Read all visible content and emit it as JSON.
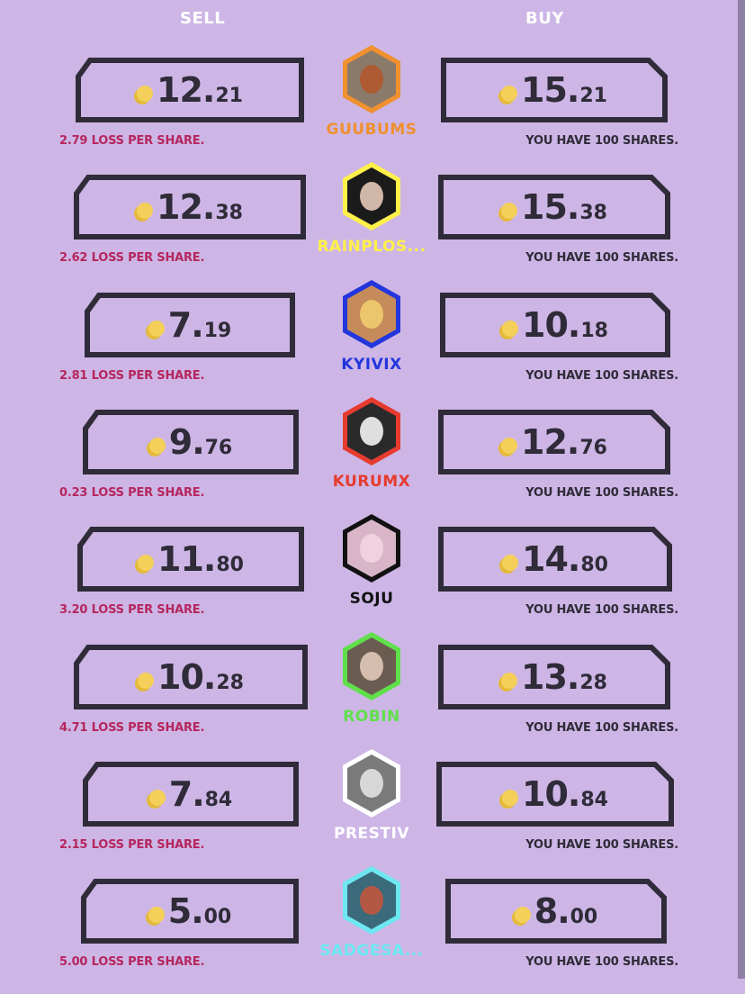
{
  "headers": {
    "sell": "SELL",
    "buy": "BUY"
  },
  "icon_names": {
    "coin": "coin-icon",
    "avatar": "avatar-icon"
  },
  "traders": [
    {
      "name": "GUUBUMS",
      "color": "#f0902e",
      "sell_int": "12",
      "sell_dec": "21",
      "buy_int": "15",
      "buy_dec": "21",
      "loss": "2.79 LOSS PER SHARE.",
      "shares": "YOU HAVE 100 SHARES."
    },
    {
      "name": "RAINPLOS...",
      "color": "#fff04a",
      "sell_int": "12",
      "sell_dec": "38",
      "buy_int": "15",
      "buy_dec": "38",
      "loss": "2.62 LOSS PER SHARE.",
      "shares": "YOU HAVE 100 SHARES."
    },
    {
      "name": "KYIVIX",
      "color": "#2336dd",
      "sell_int": "7",
      "sell_dec": "19",
      "buy_int": "10",
      "buy_dec": "18",
      "loss": "2.81 LOSS PER SHARE.",
      "shares": "YOU HAVE 100 SHARES."
    },
    {
      "name": "KURUMX",
      "color": "#e63b2e",
      "sell_int": "9",
      "sell_dec": "76",
      "buy_int": "12",
      "buy_dec": "76",
      "loss": "0.23 LOSS PER SHARE.",
      "shares": "YOU HAVE 100 SHARES."
    },
    {
      "name": "SOJU",
      "color": "#111111",
      "sell_int": "11",
      "sell_dec": "80",
      "buy_int": "14",
      "buy_dec": "80",
      "loss": "3.20 LOSS PER SHARE.",
      "shares": "YOU HAVE 100 SHARES."
    },
    {
      "name": "ROBIN",
      "color": "#5fe04a",
      "sell_int": "10",
      "sell_dec": "28",
      "buy_int": "13",
      "buy_dec": "28",
      "loss": "4.71 LOSS PER SHARE.",
      "shares": "YOU HAVE 100 SHARES."
    },
    {
      "name": "PRESTIV",
      "color": "#ffffff",
      "sell_int": "7",
      "sell_dec": "84",
      "buy_int": "10",
      "buy_dec": "84",
      "loss": "2.15 LOSS PER SHARE.",
      "shares": "YOU HAVE 100 SHARES."
    },
    {
      "name": "SADGESA...",
      "color": "#6de8f2",
      "sell_int": "5",
      "sell_dec": "00",
      "buy_int": "8",
      "buy_dec": "00",
      "loss": "5.00 LOSS PER SHARE.",
      "shares": "YOU HAVE 100 SHARES."
    }
  ]
}
